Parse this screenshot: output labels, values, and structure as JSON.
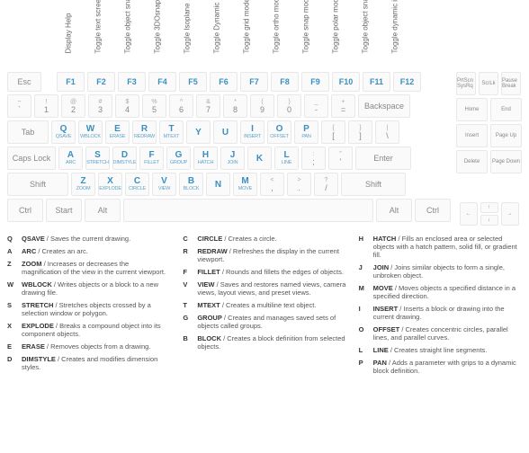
{
  "colors": {
    "accent": "#3b8fbf",
    "key_bg": "#fafafa",
    "key_border": "#e8e8e8",
    "text_muted": "#888",
    "text_dark": "#333",
    "background": "#ffffff"
  },
  "fn_labels": [
    "Display Help",
    "Toggle text screen",
    "Toggle object snap mode",
    "Toggle 3DOsnap",
    "Toggle Isoplane",
    "Toggle Dynamic UCS",
    "Toggle grid mode",
    "Toggle ortho mode",
    "Toggle snap mode",
    "Toggle polar mode",
    "Toggle object snap tracking",
    "Toggle dynamic input mode"
  ],
  "keys": {
    "esc": "Esc",
    "fns": [
      "F1",
      "F2",
      "F3",
      "F4",
      "F5",
      "F6",
      "F7",
      "F8",
      "F9",
      "F10",
      "F11",
      "F12"
    ],
    "num_row_upper": [
      "~",
      "!",
      "@",
      "#",
      "$",
      "%",
      "^",
      "&",
      "*",
      "(",
      ")",
      "_",
      "+"
    ],
    "num_row_main": [
      "`",
      "1",
      "2",
      "3",
      "4",
      "5",
      "6",
      "7",
      "8",
      "9",
      "0",
      "-",
      "="
    ],
    "backspace": "Backspace",
    "tab": "Tab",
    "q_row_main": [
      "Q",
      "W",
      "E",
      "R",
      "T",
      "Y",
      "U",
      "I",
      "O",
      "P"
    ],
    "q_row_cmd": [
      "QSAVE",
      "WBLOCK",
      "ERASE",
      "REDRAW",
      "MTEXT",
      "",
      "",
      "INSERT",
      "OFFSET",
      "PAN"
    ],
    "q_row_tail_upper": [
      "{",
      "}",
      "|"
    ],
    "q_row_tail_main": [
      "[",
      "]",
      "\\"
    ],
    "caps": "Caps Lock",
    "a_row_main": [
      "A",
      "S",
      "D",
      "F",
      "G",
      "H",
      "J",
      "K",
      "L"
    ],
    "a_row_cmd": [
      "ARC",
      "STRETCH",
      "DIMSTYLE",
      "FILLET",
      "GROUP",
      "HATCH",
      "JOIN",
      "",
      "LINE"
    ],
    "a_row_tail_upper": [
      ":",
      "\""
    ],
    "a_row_tail_main": [
      ";",
      "'"
    ],
    "enter": "Enter",
    "shift": "Shift",
    "z_row_main": [
      "Z",
      "X",
      "C",
      "V",
      "B",
      "N",
      "M"
    ],
    "z_row_cmd": [
      "ZOOM",
      "EXPLODE",
      "CIRCLE",
      "VIEW",
      "BLOCK",
      "",
      "MOVE"
    ],
    "z_row_tail_upper": [
      "<",
      ">",
      "?"
    ],
    "z_row_tail_main": [
      ",",
      ".",
      "/"
    ],
    "ctrl": "Ctrl",
    "start": "Start",
    "alt": "Alt",
    "side_fn": [
      "PrtScn SysRq",
      "ScrLk",
      "Pause Break"
    ],
    "side_r2": [
      "Home",
      "End"
    ],
    "side_r3": [
      "Insert",
      "Page Up"
    ],
    "side_r4": [
      "Delete",
      "Page Down"
    ],
    "arrows": [
      "←",
      "↑",
      "→",
      "↓"
    ]
  },
  "legend": [
    [
      {
        "k": "Q",
        "n": "QSAVE",
        "d": "Saves the current drawing."
      },
      {
        "k": "A",
        "n": "ARC",
        "d": "Creates an arc."
      },
      {
        "k": "Z",
        "n": "ZOOM",
        "d": "Increases or decreases the magnification of the view in the current viewport."
      },
      {
        "k": "W",
        "n": "WBLOCK",
        "d": "Writes objects or a block to a new drawing file."
      },
      {
        "k": "S",
        "n": "STRETCH",
        "d": "Stretches objects crossed by a selection window or polygon."
      },
      {
        "k": "X",
        "n": "EXPLODE",
        "d": "Breaks a compound object into its component objects."
      },
      {
        "k": "E",
        "n": "ERASE",
        "d": "Removes objects from a drawing."
      },
      {
        "k": "D",
        "n": "DIMSTYLE",
        "d": "Creates and modifies dimension styles."
      }
    ],
    [
      {
        "k": "C",
        "n": "CIRCLE",
        "d": "Creates a circle."
      },
      {
        "k": "R",
        "n": "REDRAW",
        "d": "Refreshes the display in the current viewport."
      },
      {
        "k": "F",
        "n": "FILLET",
        "d": "Rounds and fillets the edges of objects."
      },
      {
        "k": "V",
        "n": "VIEW",
        "d": "Saves and restores named views, camera views, layout views, and preset views."
      },
      {
        "k": "T",
        "n": "MTEXT",
        "d": "Creates a multiline text object."
      },
      {
        "k": "G",
        "n": "GROUP",
        "d": "Creates and manages saved sets of objects called groups."
      },
      {
        "k": "B",
        "n": "BLOCK",
        "d": "Creates a block definition from selected objects."
      }
    ],
    [
      {
        "k": "H",
        "n": "HATCH",
        "d": "Fills an enclosed area or selected objects with a hatch pattern, solid fill, or gradient fill."
      },
      {
        "k": "J",
        "n": "JOIN",
        "d": "Joins similar objects to form a single, unbroken object."
      },
      {
        "k": "M",
        "n": "MOVE",
        "d": "Moves objects a specified distance in a specified direction."
      },
      {
        "k": "I",
        "n": "INSERT",
        "d": "Inserts a block or drawing into the current drawing."
      },
      {
        "k": "O",
        "n": "OFFSET",
        "d": "Creates concentric circles, parallel lines, and parallel curves."
      },
      {
        "k": "L",
        "n": "LINE",
        "d": "Creates straight line segments."
      },
      {
        "k": "P",
        "n": "PAN",
        "d": "Adds a parameter with grips to a dynamic block definition."
      }
    ]
  ]
}
